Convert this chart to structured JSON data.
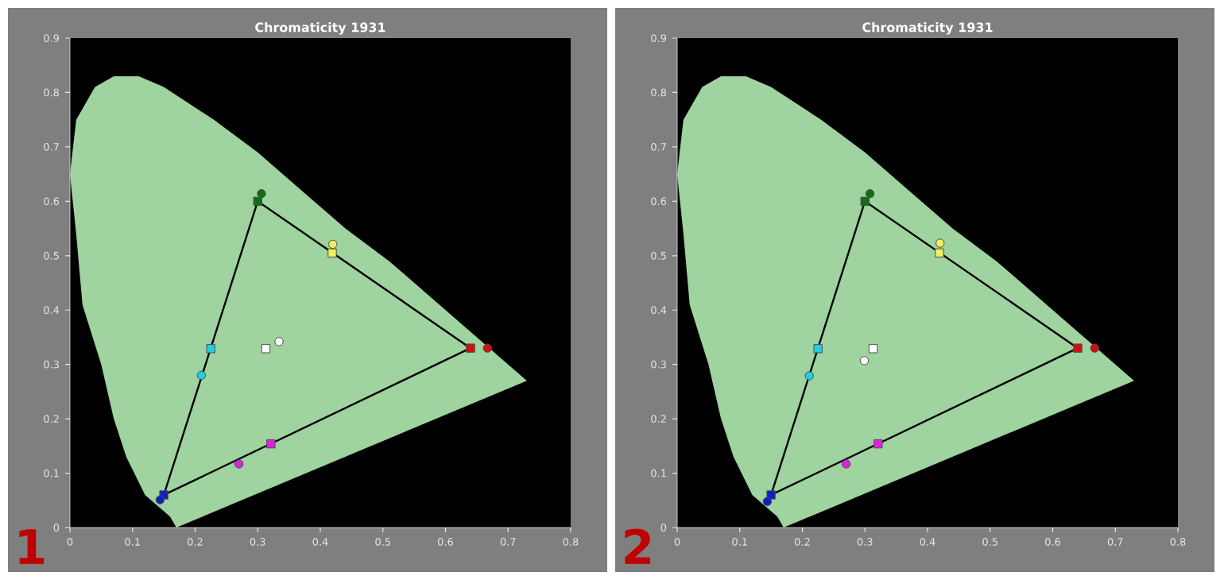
{
  "chart_data": [
    {
      "type": "scatter",
      "title": "Chromaticity 1931",
      "annotations": [
        "1"
      ],
      "xlim": [
        0,
        0.8
      ],
      "ylim": [
        0,
        0.9
      ],
      "xticks": [
        0,
        0.1,
        0.2,
        0.3,
        0.4,
        0.5,
        0.6,
        0.7,
        0.8
      ],
      "yticks": [
        0,
        0.1,
        0.2,
        0.3,
        0.4,
        0.5,
        0.6,
        0.7,
        0.8,
        0.9
      ],
      "series": [
        {
          "type": "area",
          "color": "#9fd39f",
          "x": [
            0.17,
            0.16,
            0.12,
            0.09,
            0.07,
            0.05,
            0.02,
            0.01,
            0.0,
            0.01,
            0.04,
            0.07,
            0.11,
            0.15,
            0.23,
            0.3,
            0.37,
            0.44,
            0.51,
            0.58,
            0.63,
            0.69,
            0.73
          ],
          "values": [
            0.0,
            0.02,
            0.06,
            0.13,
            0.2,
            0.3,
            0.41,
            0.54,
            0.65,
            0.75,
            0.81,
            0.83,
            0.83,
            0.81,
            0.75,
            0.69,
            0.62,
            0.55,
            0.49,
            0.42,
            0.37,
            0.31,
            0.27
          ]
        },
        {
          "type": "line",
          "color": "#000000",
          "x": [
            0.15,
            0.3
          ],
          "values": [
            0.06,
            0.6
          ]
        },
        {
          "type": "line",
          "color": "#000000",
          "x": [
            0.3,
            0.64
          ],
          "values": [
            0.6,
            0.33
          ]
        },
        {
          "type": "line",
          "color": "#000000",
          "x": [
            0.15,
            0.64
          ],
          "values": [
            0.06,
            0.33
          ]
        },
        {
          "marker": "square",
          "x": [
            0.64,
            0.3,
            0.15,
            0.419,
            0.225,
            0.321,
            0.313
          ],
          "values": [
            0.33,
            0.6,
            0.06,
            0.505,
            0.329,
            0.154,
            0.329
          ],
          "colors": [
            "#d01010",
            "#107010",
            "#1020c0",
            "#f0f060",
            "#20d0e0",
            "#e020e0",
            "#ffffff"
          ]
        },
        {
          "marker": "circle",
          "x": [
            0.667,
            0.306,
            0.144,
            0.42,
            0.21,
            0.27,
            0.334
          ],
          "values": [
            0.33,
            0.614,
            0.051,
            0.521,
            0.28,
            0.117,
            0.342
          ],
          "colors": [
            "#d01010",
            "#107010",
            "#1020c0",
            "#f0f060",
            "#20d0e0",
            "#e020e0",
            "#ffffff"
          ]
        }
      ]
    },
    {
      "type": "scatter",
      "title": "Chromaticity 1931",
      "annotations": [
        "2"
      ],
      "xlim": [
        0,
        0.8
      ],
      "ylim": [
        0,
        0.9
      ],
      "xticks": [
        0,
        0.1,
        0.2,
        0.3,
        0.4,
        0.5,
        0.6,
        0.7,
        0.8
      ],
      "yticks": [
        0,
        0.1,
        0.2,
        0.3,
        0.4,
        0.5,
        0.6,
        0.7,
        0.8,
        0.9
      ],
      "series": [
        {
          "type": "area",
          "color": "#9fd39f",
          "x": [
            0.17,
            0.16,
            0.12,
            0.09,
            0.07,
            0.05,
            0.02,
            0.01,
            0.0,
            0.01,
            0.04,
            0.07,
            0.11,
            0.15,
            0.23,
            0.3,
            0.37,
            0.44,
            0.51,
            0.58,
            0.63,
            0.69,
            0.73
          ],
          "values": [
            0.0,
            0.02,
            0.06,
            0.13,
            0.2,
            0.3,
            0.41,
            0.54,
            0.65,
            0.75,
            0.81,
            0.83,
            0.83,
            0.81,
            0.75,
            0.69,
            0.62,
            0.55,
            0.49,
            0.42,
            0.37,
            0.31,
            0.27
          ]
        },
        {
          "type": "line",
          "color": "#000000",
          "x": [
            0.15,
            0.3
          ],
          "values": [
            0.06,
            0.6
          ]
        },
        {
          "type": "line",
          "color": "#000000",
          "x": [
            0.3,
            0.64
          ],
          "values": [
            0.6,
            0.33
          ]
        },
        {
          "type": "line",
          "color": "#000000",
          "x": [
            0.15,
            0.64
          ],
          "values": [
            0.06,
            0.33
          ]
        },
        {
          "marker": "square",
          "x": [
            0.64,
            0.3,
            0.15,
            0.419,
            0.225,
            0.321,
            0.313
          ],
          "values": [
            0.33,
            0.6,
            0.06,
            0.505,
            0.329,
            0.154,
            0.329
          ],
          "colors": [
            "#d01010",
            "#107010",
            "#1020c0",
            "#f0f060",
            "#20d0e0",
            "#e020e0",
            "#ffffff"
          ]
        },
        {
          "marker": "circle",
          "x": [
            0.667,
            0.308,
            0.144,
            0.42,
            0.211,
            0.27,
            0.299
          ],
          "values": [
            0.33,
            0.614,
            0.048,
            0.523,
            0.279,
            0.117,
            0.307
          ],
          "colors": [
            "#d01010",
            "#107010",
            "#1020c0",
            "#f0f060",
            "#20d0e0",
            "#e020e0",
            "#ffffff"
          ]
        }
      ]
    }
  ]
}
